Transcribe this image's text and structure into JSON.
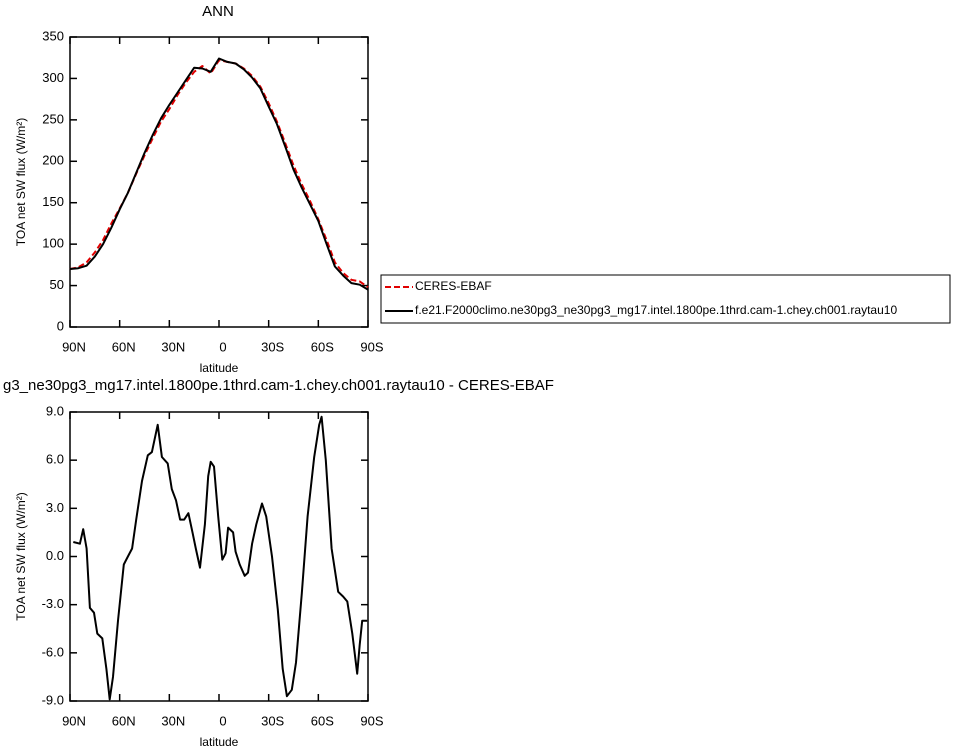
{
  "chart_data": [
    {
      "type": "line",
      "title": "ANN",
      "xlabel": "latitude",
      "ylabel": "TOA net SW flux (W/m²)",
      "x": [
        90,
        85,
        80,
        75,
        70,
        65,
        60,
        55,
        50,
        45,
        40,
        35,
        30,
        25,
        20,
        15,
        10,
        5,
        0,
        -5,
        -10,
        -15,
        -20,
        -25,
        -30,
        -35,
        -40,
        -45,
        -50,
        -55,
        -60,
        -65,
        -70,
        -75,
        -80,
        -85,
        -90
      ],
      "series": [
        {
          "name": "CERES-EBAF",
          "color": "#e00000",
          "dashed": true,
          "values": [
            70,
            72,
            78,
            90,
            105,
            125,
            143,
            162,
            185,
            207,
            228,
            248,
            263,
            280,
            295,
            308,
            315,
            306,
            322,
            320,
            318,
            312,
            303,
            290,
            270,
            248,
            222,
            195,
            172,
            152,
            130,
            105,
            78,
            65,
            57,
            55,
            48
          ]
        },
        {
          "name": "f.e21.F2000climo.ne30pg3_ne30pg3_mg17.intel.1800pe.1thrd.cam-1.chey.ch001.raytau10",
          "color": "#000000",
          "dashed": false,
          "values": [
            70,
            71,
            74,
            85,
            100,
            120,
            142,
            162,
            186,
            210,
            232,
            252,
            268,
            283,
            298,
            313,
            312,
            308,
            324,
            320,
            318,
            311,
            301,
            288,
            266,
            245,
            218,
            190,
            168,
            148,
            128,
            100,
            73,
            62,
            53,
            51,
            45
          ]
        }
      ],
      "xlim": [
        90,
        -90
      ],
      "xticks": [
        {
          "value": 90,
          "label": "90N"
        },
        {
          "value": 60,
          "label": "60N"
        },
        {
          "value": 30,
          "label": "30N"
        },
        0,
        {
          "value": -30,
          "label": "30S"
        },
        {
          "value": -60,
          "label": "60S"
        },
        {
          "value": -90,
          "label": "90S"
        }
      ],
      "ylim": [
        0,
        350
      ],
      "yticks": [
        0,
        50,
        100,
        150,
        200,
        250,
        300,
        350
      ],
      "legend": "right"
    },
    {
      "type": "line",
      "title": "g3_ne30pg3_mg17.intel.1800pe.1thrd.cam-1.chey.ch001.raytau10 - CERES-EBAF",
      "xlabel": "latitude",
      "ylabel": "TOA net SW flux (W/m²)",
      "x": [
        88,
        84,
        82,
        80,
        78,
        75.5,
        73.5,
        70.5,
        68,
        66,
        64,
        61,
        57.5,
        55,
        52.5,
        50,
        46.5,
        43,
        40.5,
        37,
        34.5,
        31,
        28.5,
        26,
        23.5,
        21,
        18.5,
        16,
        14,
        11.5,
        8.5,
        6.5,
        5,
        3,
        0.5,
        -2,
        -4,
        -5.5,
        -8.5,
        -10,
        -12.5,
        -15.5,
        -17.5,
        -20,
        -22.5,
        -26,
        -28.5,
        -32,
        -35.5,
        -38.5,
        -41,
        -44,
        -46.5,
        -50,
        -53.5,
        -57.5,
        -60.5,
        -62,
        -64.5,
        -68,
        -72,
        -75,
        -77.5,
        -80.5,
        -83.5,
        -85,
        -86.5,
        -89.5
      ],
      "color": "#000000",
      "values": [
        0.9,
        0.8,
        1.7,
        0.5,
        -3.2,
        -3.5,
        -4.8,
        -5.1,
        -7,
        -8.9,
        -7.5,
        -4,
        -0.5,
        0,
        0.5,
        2.3,
        4.7,
        6.3,
        6.5,
        8.2,
        6.2,
        5.8,
        4.2,
        3.5,
        2.3,
        2.3,
        2.7,
        1.5,
        0.5,
        -0.7,
        2,
        5,
        5.9,
        5.6,
        2.5,
        -0.2,
        0.2,
        1.8,
        1.5,
        0.3,
        -0.5,
        -1.2,
        -1,
        0.8,
        2,
        3.3,
        2.5,
        0,
        -3.3,
        -7,
        -8.7,
        -8.3,
        -6.6,
        -2.3,
        2.5,
        6.2,
        8.2,
        8.7,
        6,
        0.5,
        -2.2,
        -2.5,
        -2.8,
        -4.8,
        -7.3,
        -5.5,
        -4,
        -4
      ],
      "xlim": [
        90,
        -90
      ],
      "xticks": [
        {
          "value": 90,
          "label": "90N"
        },
        {
          "value": 60,
          "label": "60N"
        },
        {
          "value": 30,
          "label": "30N"
        },
        0,
        {
          "value": -30,
          "label": "30S"
        },
        {
          "value": -60,
          "label": "60S"
        },
        {
          "value": -90,
          "label": "90S"
        }
      ],
      "ylim": [
        -9,
        9
      ],
      "yticks": [
        {
          "value": -9,
          "label": "-9.0"
        },
        {
          "value": -6,
          "label": "-6.0"
        },
        {
          "value": -3,
          "label": "-3.0"
        },
        {
          "value": 0,
          "label": "0.0"
        },
        {
          "value": 3,
          "label": "3.0"
        },
        {
          "value": 6,
          "label": "6.0"
        },
        {
          "value": 9,
          "label": "9.0"
        }
      ]
    }
  ]
}
